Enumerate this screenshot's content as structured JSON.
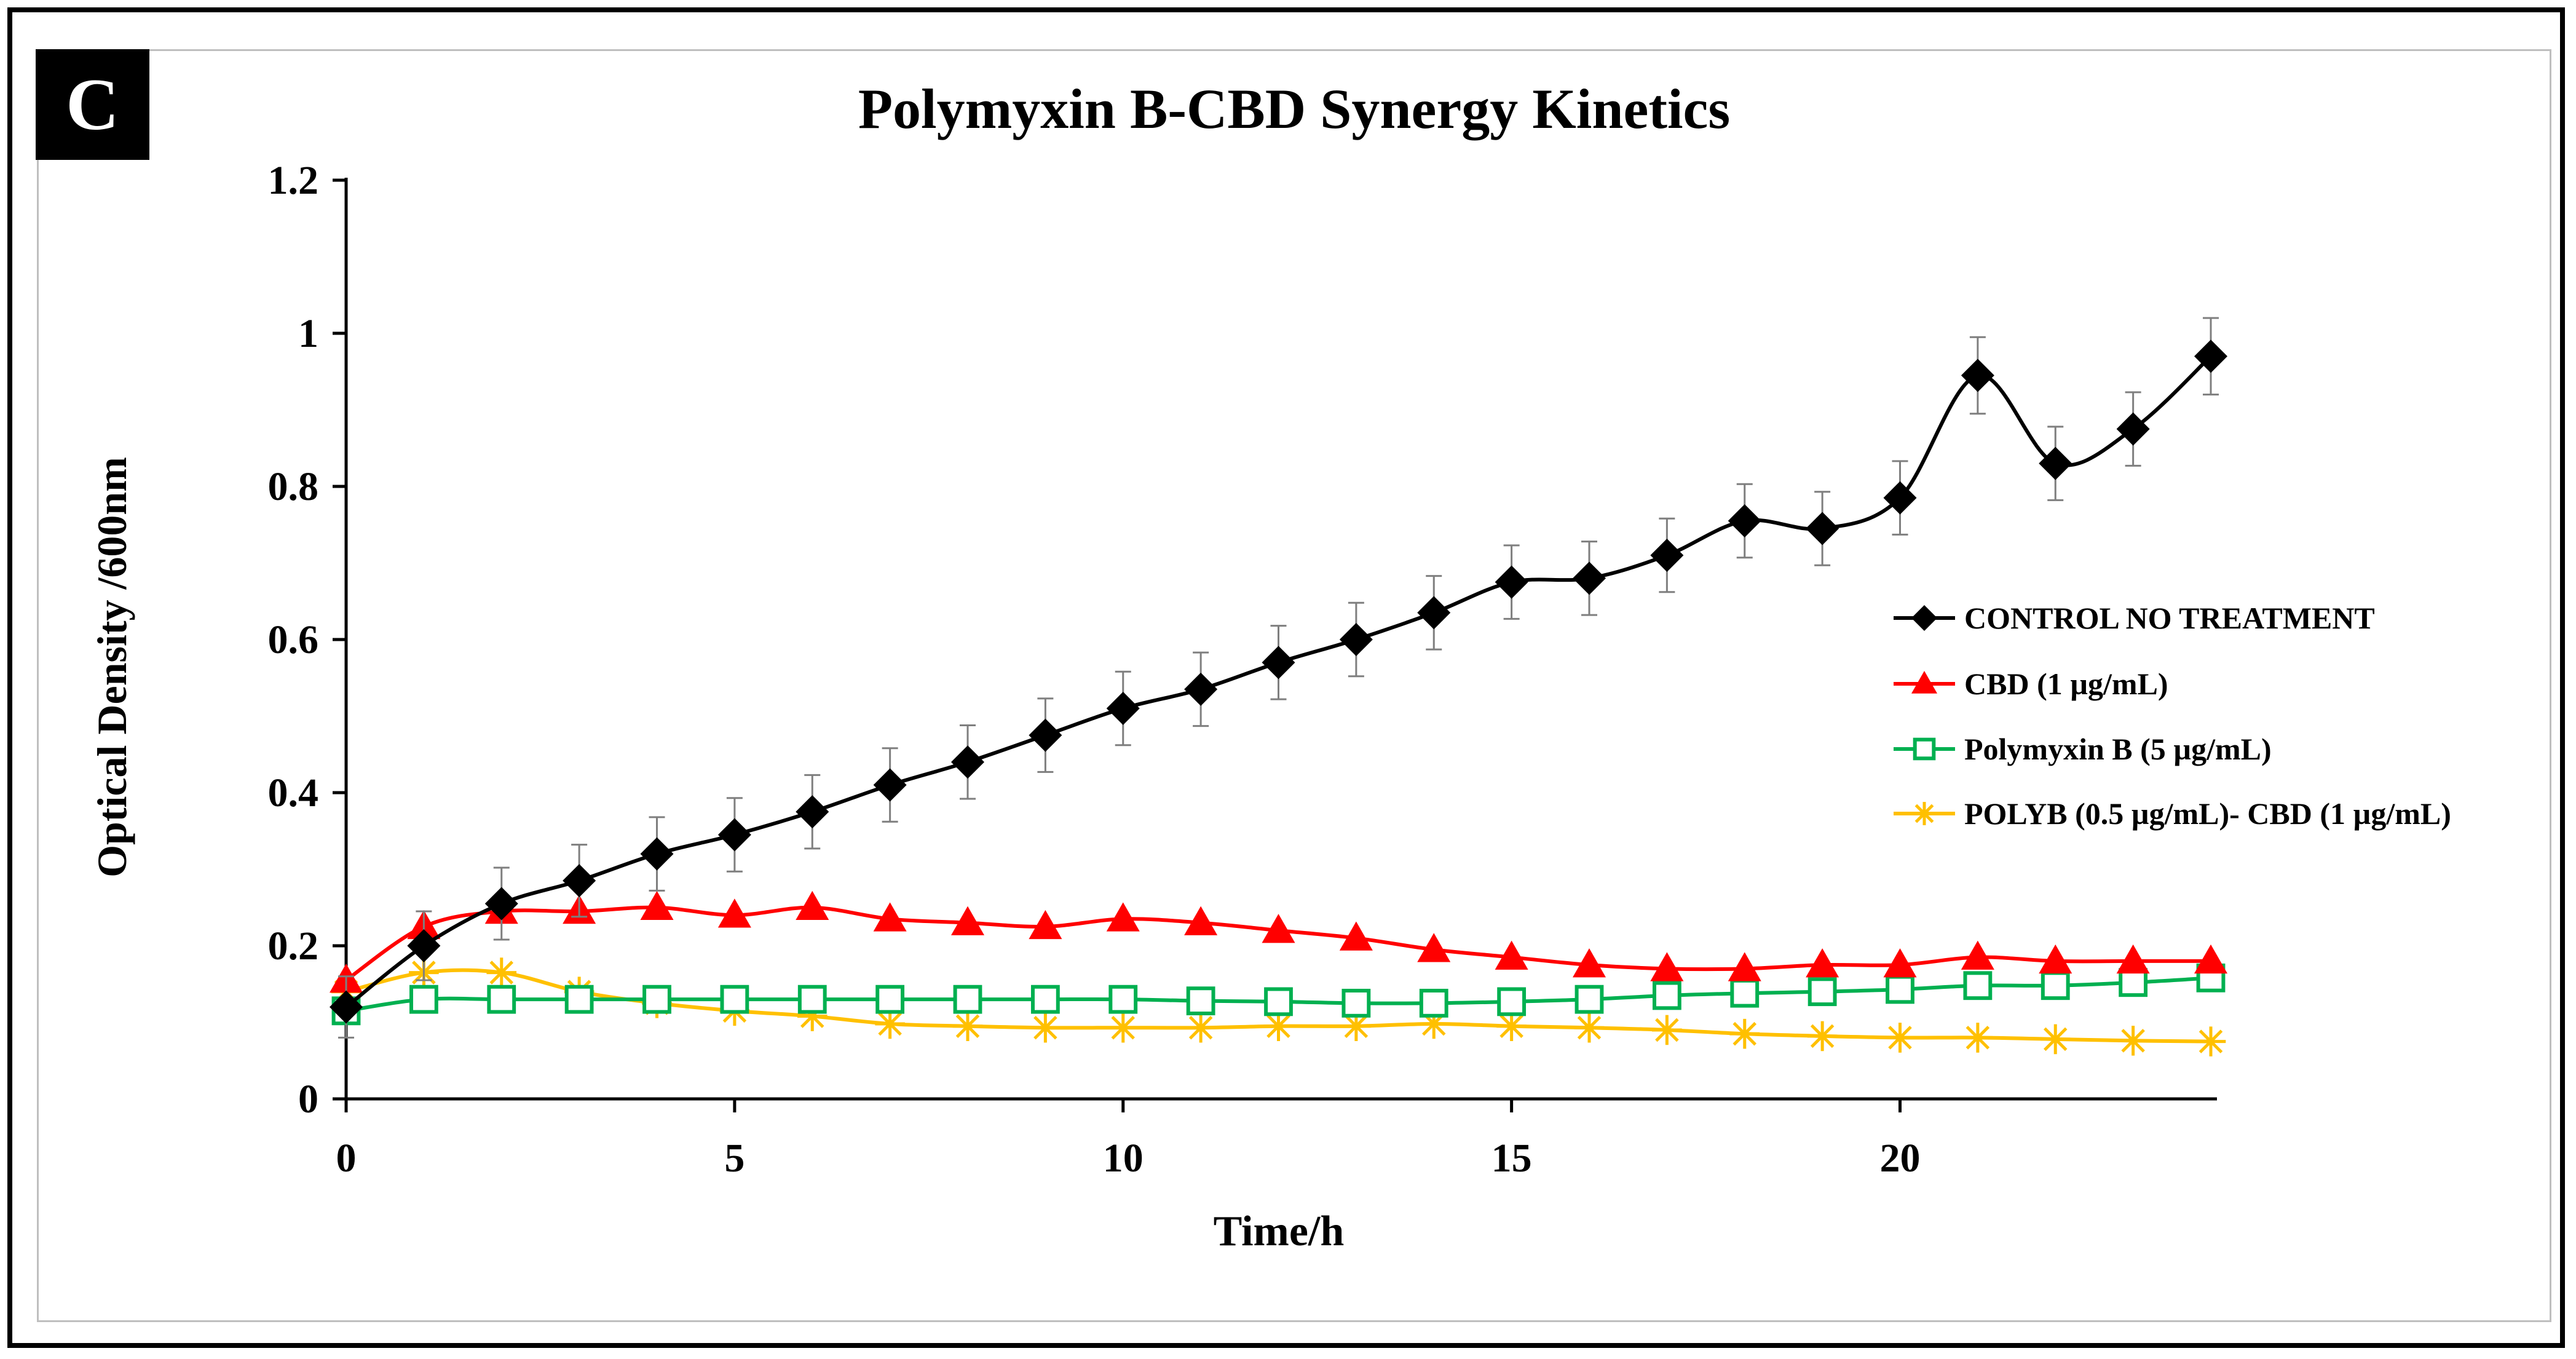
{
  "panel_label": "C",
  "chart_data": {
    "type": "line",
    "title": "Polymyxin B-CBD Synergy Kinetics",
    "xlabel": "Time/h",
    "ylabel": "Optical Density /600nm",
    "xlim": [
      0,
      24
    ],
    "ylim": [
      0,
      1.2
    ],
    "xticks": [
      0,
      5,
      10,
      15,
      20
    ],
    "yticks": [
      0,
      0.2,
      0.4,
      0.6,
      0.8,
      1,
      1.2
    ],
    "ytick_labels": [
      "0",
      "0.2",
      "0.4",
      "0.6",
      "0.8",
      "1",
      "1.2"
    ],
    "grid": false,
    "legend_position": "right",
    "x": [
      0,
      1,
      2,
      3,
      4,
      5,
      6,
      7,
      8,
      9,
      10,
      11,
      12,
      13,
      14,
      15,
      16,
      17,
      18,
      19,
      20,
      21,
      22,
      23,
      24
    ],
    "series": [
      {
        "name": "CONTROL NO TREATMENT",
        "color": "#000000",
        "marker": "diamond",
        "values": [
          0.12,
          0.2,
          0.255,
          0.285,
          0.32,
          0.345,
          0.375,
          0.41,
          0.44,
          0.475,
          0.51,
          0.535,
          0.57,
          0.6,
          0.635,
          0.675,
          0.68,
          0.71,
          0.755,
          0.745,
          0.785,
          0.945,
          0.83,
          0.875,
          0.97
        ],
        "errors": [
          0.04,
          0.045,
          0.047,
          0.047,
          0.048,
          0.048,
          0.048,
          0.048,
          0.048,
          0.048,
          0.048,
          0.048,
          0.048,
          0.048,
          0.048,
          0.048,
          0.048,
          0.048,
          0.048,
          0.048,
          0.048,
          0.05,
          0.048,
          0.048,
          0.05
        ]
      },
      {
        "name": "CBD (1 µg/mL)",
        "color": "#ff0000",
        "marker": "triangle",
        "values": [
          0.155,
          0.225,
          0.245,
          0.245,
          0.25,
          0.24,
          0.25,
          0.235,
          0.23,
          0.225,
          0.235,
          0.23,
          0.22,
          0.21,
          0.195,
          0.185,
          0.175,
          0.17,
          0.17,
          0.175,
          0.175,
          0.185,
          0.18,
          0.18,
          0.18
        ]
      },
      {
        "name": "Polymyxin B (5 µg/mL)",
        "color": "#00b050",
        "marker": "square-open",
        "values": [
          0.115,
          0.13,
          0.13,
          0.13,
          0.13,
          0.13,
          0.13,
          0.13,
          0.13,
          0.13,
          0.13,
          0.128,
          0.127,
          0.125,
          0.125,
          0.127,
          0.13,
          0.135,
          0.138,
          0.14,
          0.143,
          0.148,
          0.148,
          0.152,
          0.158
        ]
      },
      {
        "name": "POLYB (0.5 µg/mL)- CBD (1 µg/mL)",
        "color": "#ffc000",
        "marker": "star",
        "values": [
          0.14,
          0.165,
          0.165,
          0.14,
          0.125,
          0.115,
          0.108,
          0.098,
          0.095,
          0.093,
          0.093,
          0.093,
          0.095,
          0.095,
          0.098,
          0.095,
          0.093,
          0.09,
          0.085,
          0.082,
          0.08,
          0.08,
          0.078,
          0.076,
          0.075
        ]
      }
    ]
  }
}
